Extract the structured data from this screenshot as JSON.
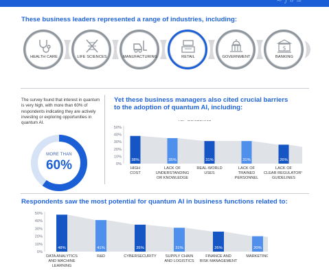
{
  "colors": {
    "accent": "#1b5fd6",
    "bar_dark": "#1556c4",
    "bar_light": "#4f90ec",
    "shadow": "#dfe2e6",
    "ring_grey": "#8f959c"
  },
  "banner": {
    "scribble": "≈ ∫ ∂ ≋"
  },
  "industries": {
    "title": "These business leaders represented a range of industries, including:",
    "items": [
      {
        "label": "HEALTH CARE",
        "icon": "stethoscope-icon"
      },
      {
        "label": "LIFE SCIENCES",
        "icon": "dna-icon"
      },
      {
        "label": "MANUFACTURING",
        "icon": "forklift-icon"
      },
      {
        "label": "RETAIL",
        "icon": "cash-register-icon"
      },
      {
        "label": "GOVERNMENT",
        "icon": "capitol-dome-icon"
      },
      {
        "label": "BANKING",
        "icon": "bank-dollar-icon"
      }
    ]
  },
  "survey": {
    "text": "The survey found that interest in quantum is very high, with more than 60% of respondents indicating they are actively investing or exploring opportunities in quantum AI.",
    "donut_sub": "MORE THAN",
    "donut_value": "60%",
    "donut_fraction": 0.6
  },
  "barriers": {
    "title_line1": "Yet these business managers also cited crucial barriers",
    "title_line2": "to the adoption of quantum AI, including:"
  },
  "functions": {
    "title": "Respondents saw the most potential for quantum AI in business functions related to:"
  },
  "chart_data": [
    {
      "type": "bar",
      "title": "TOP CONCERNS",
      "categories": [
        [
          "HIGH",
          "COST"
        ],
        [
          "LACK OF",
          "UNDERSTANDING",
          "OR KNOWLEDGE"
        ],
        [
          "REAL-WORLD",
          "USES"
        ],
        [
          "LACK OF",
          "TRAINED",
          "PERSONNEL"
        ],
        [
          "LACK OF",
          "CLEAR REGULATORY",
          "GUIDELINES"
        ]
      ],
      "values": [
        38,
        35,
        31,
        31,
        26
      ],
      "value_labels": [
        "38%",
        "35%",
        "31%",
        "31%",
        "26%"
      ],
      "ylim": [
        0,
        50
      ],
      "yticks": [
        "0%",
        "10%",
        "20%",
        "30%",
        "40%",
        "50%"
      ],
      "xlabel": "",
      "ylabel": "",
      "grid": false
    },
    {
      "type": "bar",
      "title": "",
      "categories": [
        [
          "DATA ANALYTICS",
          "AND MACHINE",
          "LEARNING"
        ],
        [
          "R&D"
        ],
        [
          "CYBERSECURITY"
        ],
        [
          "SUPPLY CHAIN",
          "AND LOGISTICS"
        ],
        [
          "FINANCE AND",
          "RISK MANAGEMENT"
        ],
        [
          "MARKETING"
        ]
      ],
      "values": [
        48,
        41,
        35,
        31,
        26,
        20
      ],
      "value_labels": [
        "48%",
        "41%",
        "35%",
        "31%",
        "26%",
        "20%"
      ],
      "ylim": [
        0,
        50
      ],
      "yticks": [
        "0%",
        "10%",
        "20%",
        "30%",
        "40%",
        "50%"
      ],
      "xlabel": "",
      "ylabel": "",
      "grid": false
    }
  ]
}
